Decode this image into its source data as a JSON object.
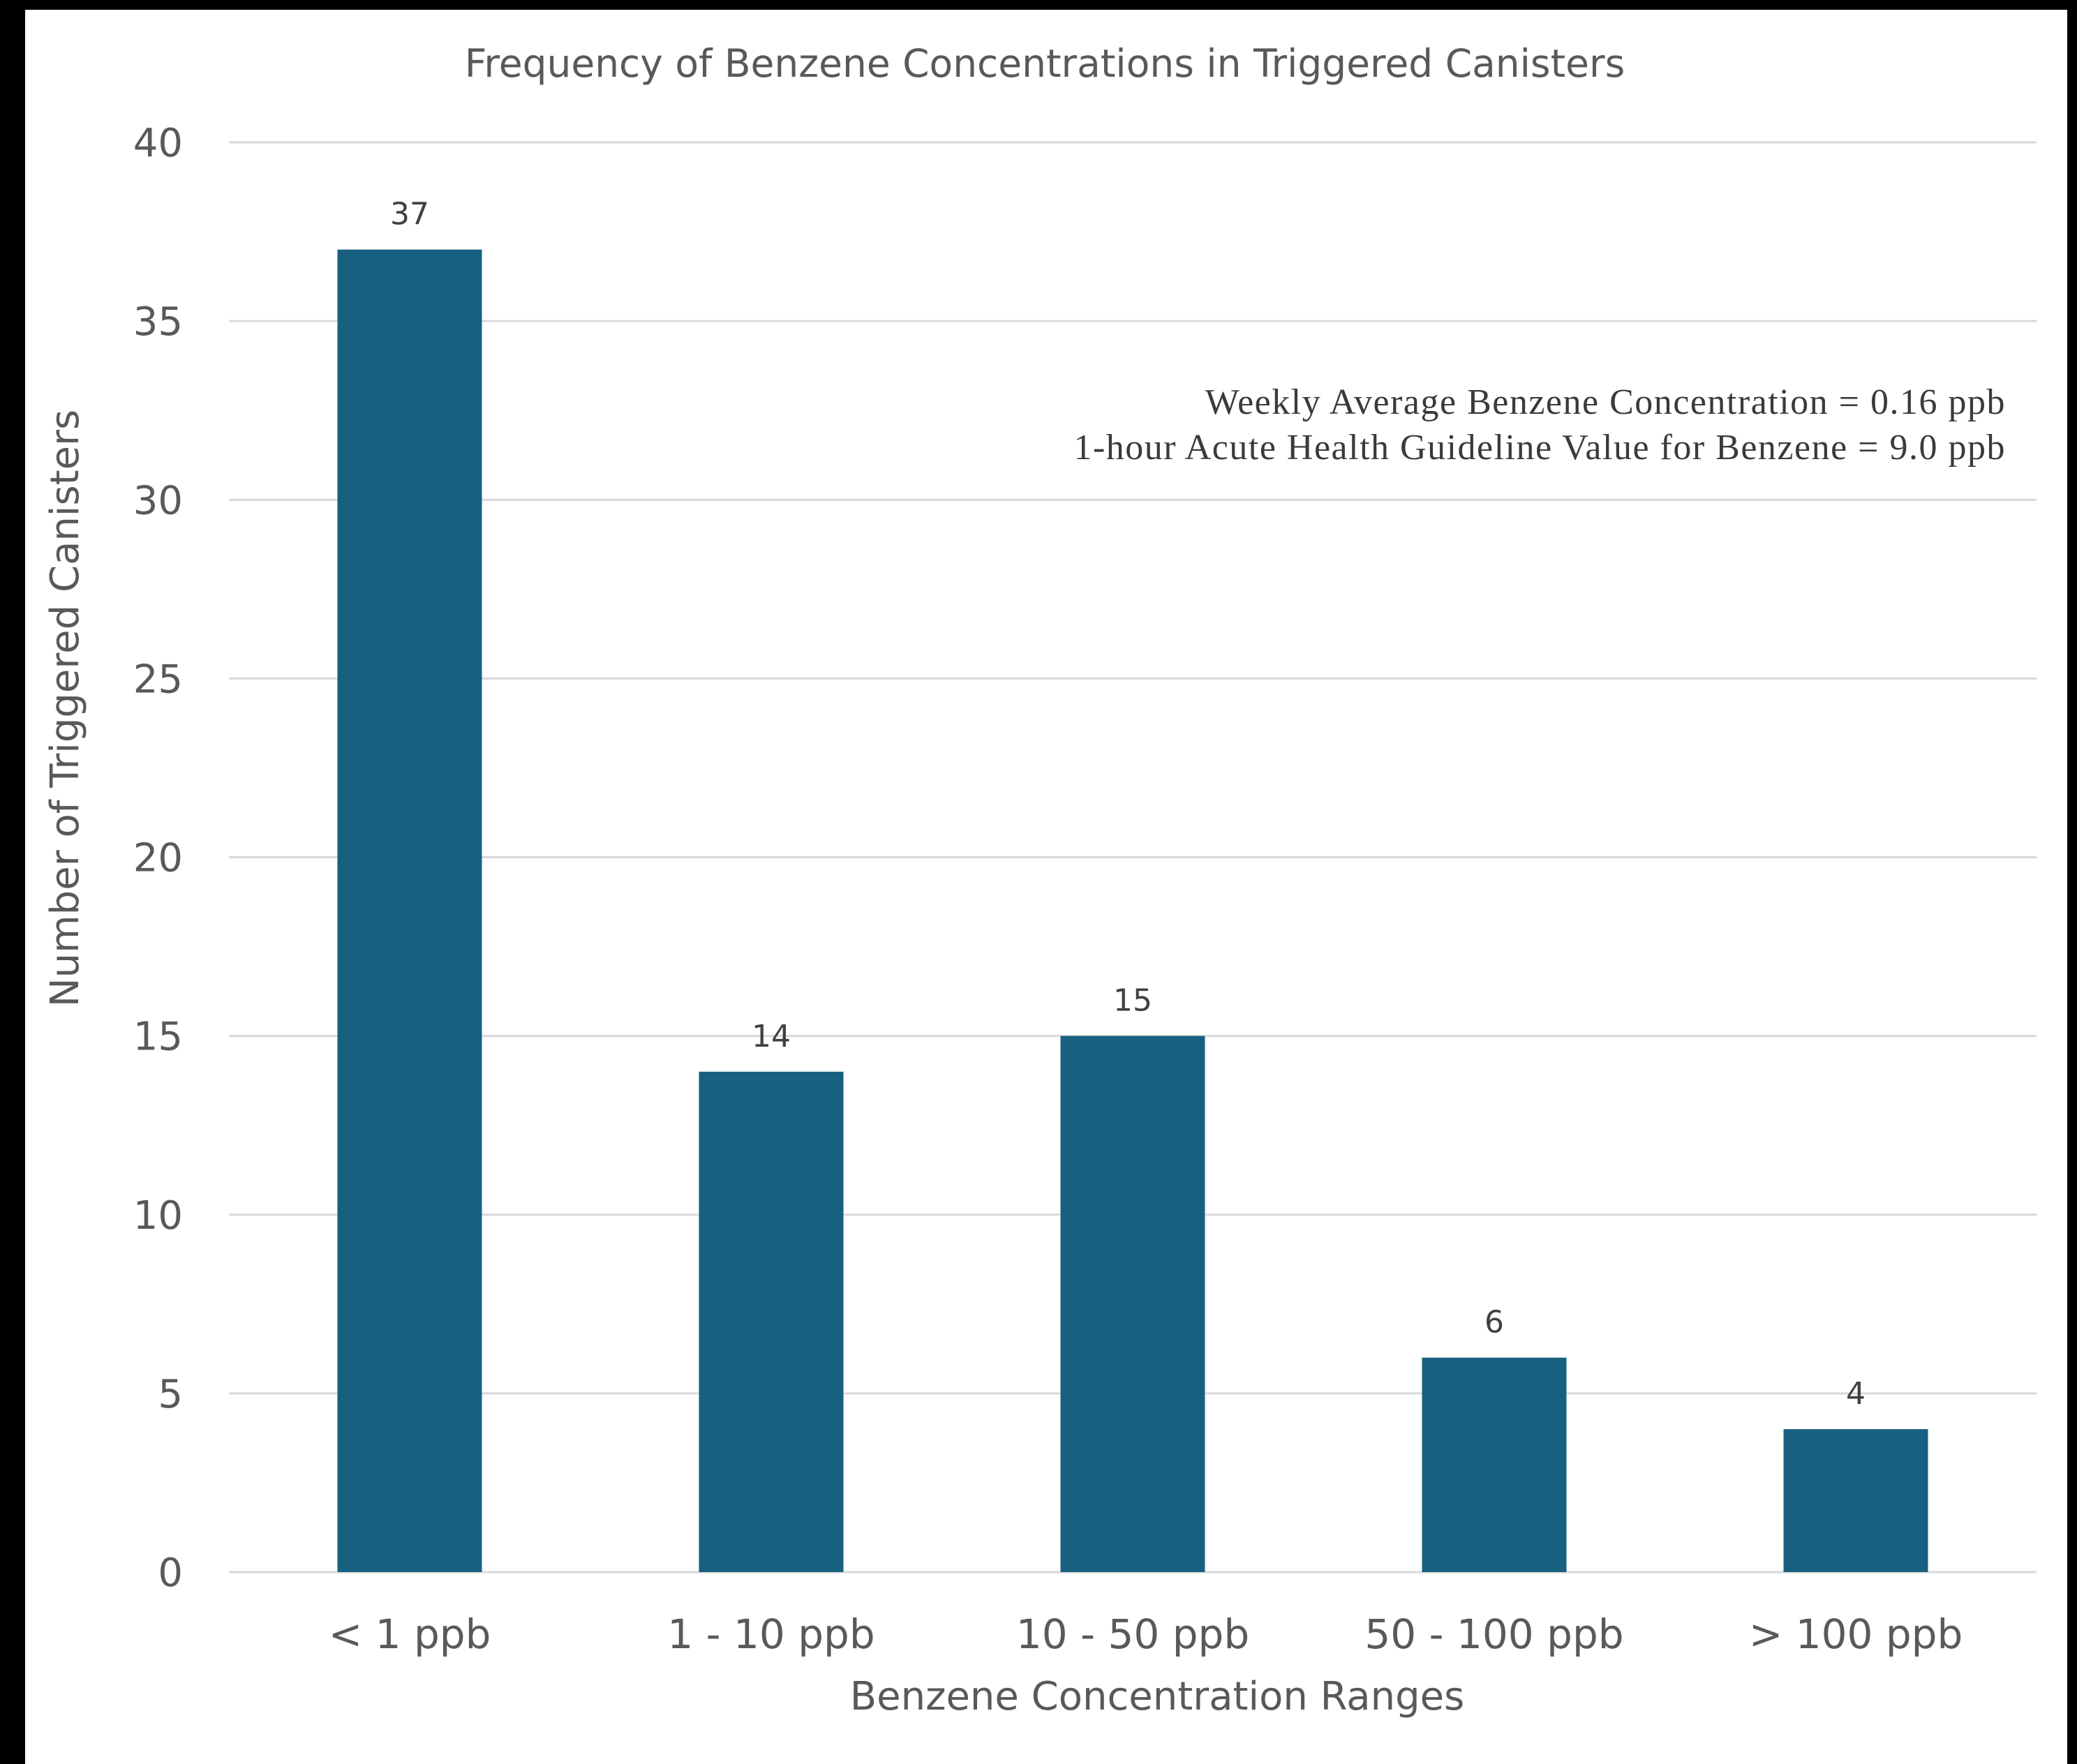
{
  "chart_data": {
    "type": "bar",
    "title": "Frequency of Benzene Concentrations in Triggered Canisters",
    "xlabel": "Benzene Concentration Ranges",
    "ylabel": "Number of Triggered Canisters",
    "categories": [
      "< 1 ppb",
      "1 - 10 ppb",
      "10 - 50 ppb",
      "50 - 100 ppb",
      "> 100 ppb"
    ],
    "values": [
      37,
      14,
      15,
      6,
      4
    ],
    "ylim": [
      0,
      40
    ],
    "yticks": [
      0,
      5,
      10,
      15,
      20,
      25,
      30,
      35,
      40
    ],
    "grid": true,
    "data_labels": true,
    "bar_color": "#17607f",
    "annotations": [
      "Weekly Average Benzene Concentration = 0.16 ppb",
      "1-hour Acute Health Guideline Value for Benzene = 9.0 ppb"
    ]
  }
}
